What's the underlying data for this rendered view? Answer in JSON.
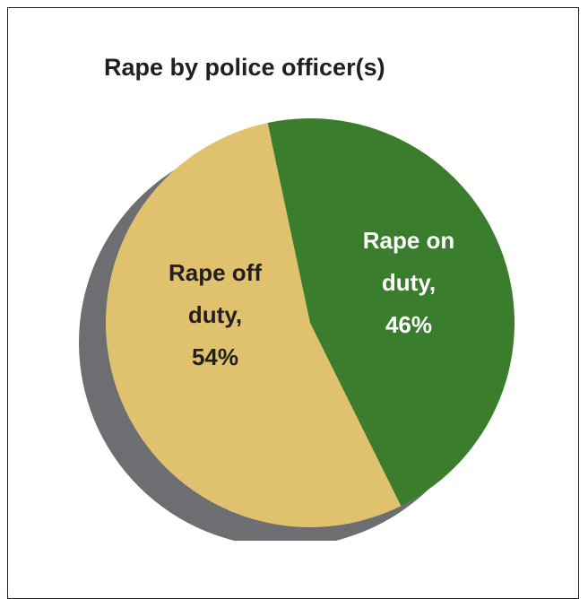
{
  "chart_data": {
    "type": "pie",
    "title": "Rape by police officer(s)",
    "slices": [
      {
        "label_lines": [
          "Rape on",
          "duty,",
          "46%"
        ],
        "name": "Rape on duty",
        "value": 46,
        "color": "#3a7d2c",
        "text_color": "#ffffff"
      },
      {
        "label_lines": [
          "Rape off",
          "duty,",
          "54%"
        ],
        "name": "Rape off duty",
        "value": 54,
        "color": "#e0c26e",
        "text_color": "#231f20"
      }
    ],
    "shadow_color": "#6d6e71",
    "legend": "none"
  }
}
